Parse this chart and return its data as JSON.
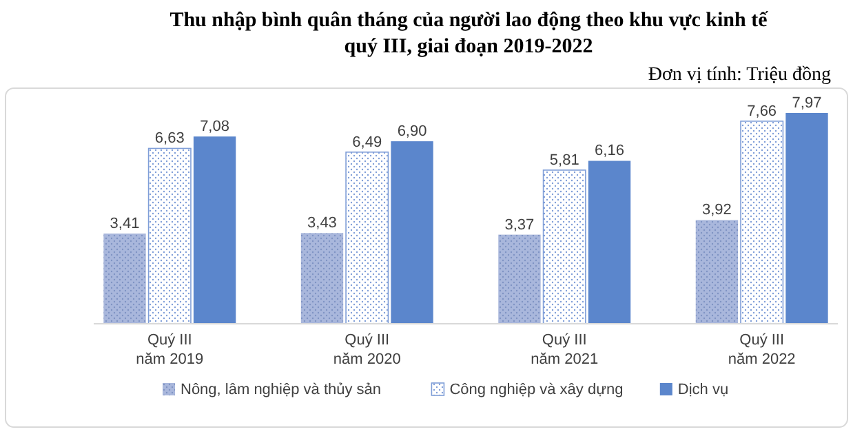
{
  "chart_data": {
    "type": "bar",
    "title": "Thu nhập bình quân tháng của người lao động theo khu vực kinh tế\nquý III, giai đoạn 2019-2022",
    "subtitle": "Đơn vị tính: Triệu đồng",
    "categories": [
      "Quý III\nnăm 2019",
      "Quý III\nnăm 2020",
      "Quý III\nnăm 2021",
      "Quý III\nnăm 2022"
    ],
    "series": [
      {
        "name": "Nông, lâm nghiệp và thủy sản",
        "color": "#a9b7dc",
        "values": [
          3.41,
          3.43,
          3.37,
          3.92
        ],
        "value_labels": [
          "3,41",
          "3,43",
          "3,37",
          "3,92"
        ]
      },
      {
        "name": "Công nghiệp và xây dựng",
        "color": "#7f9ed8",
        "values": [
          6.63,
          6.49,
          5.81,
          7.66
        ],
        "value_labels": [
          "6,63",
          "6,49",
          "5,81",
          "7,66"
        ]
      },
      {
        "name": "Dịch vụ",
        "color": "#5b86cc",
        "values": [
          7.08,
          6.9,
          6.16,
          7.97
        ],
        "value_labels": [
          "7,08",
          "6,90",
          "6,16",
          "7,97"
        ]
      }
    ],
    "legend": "bottom",
    "grid": false
  }
}
